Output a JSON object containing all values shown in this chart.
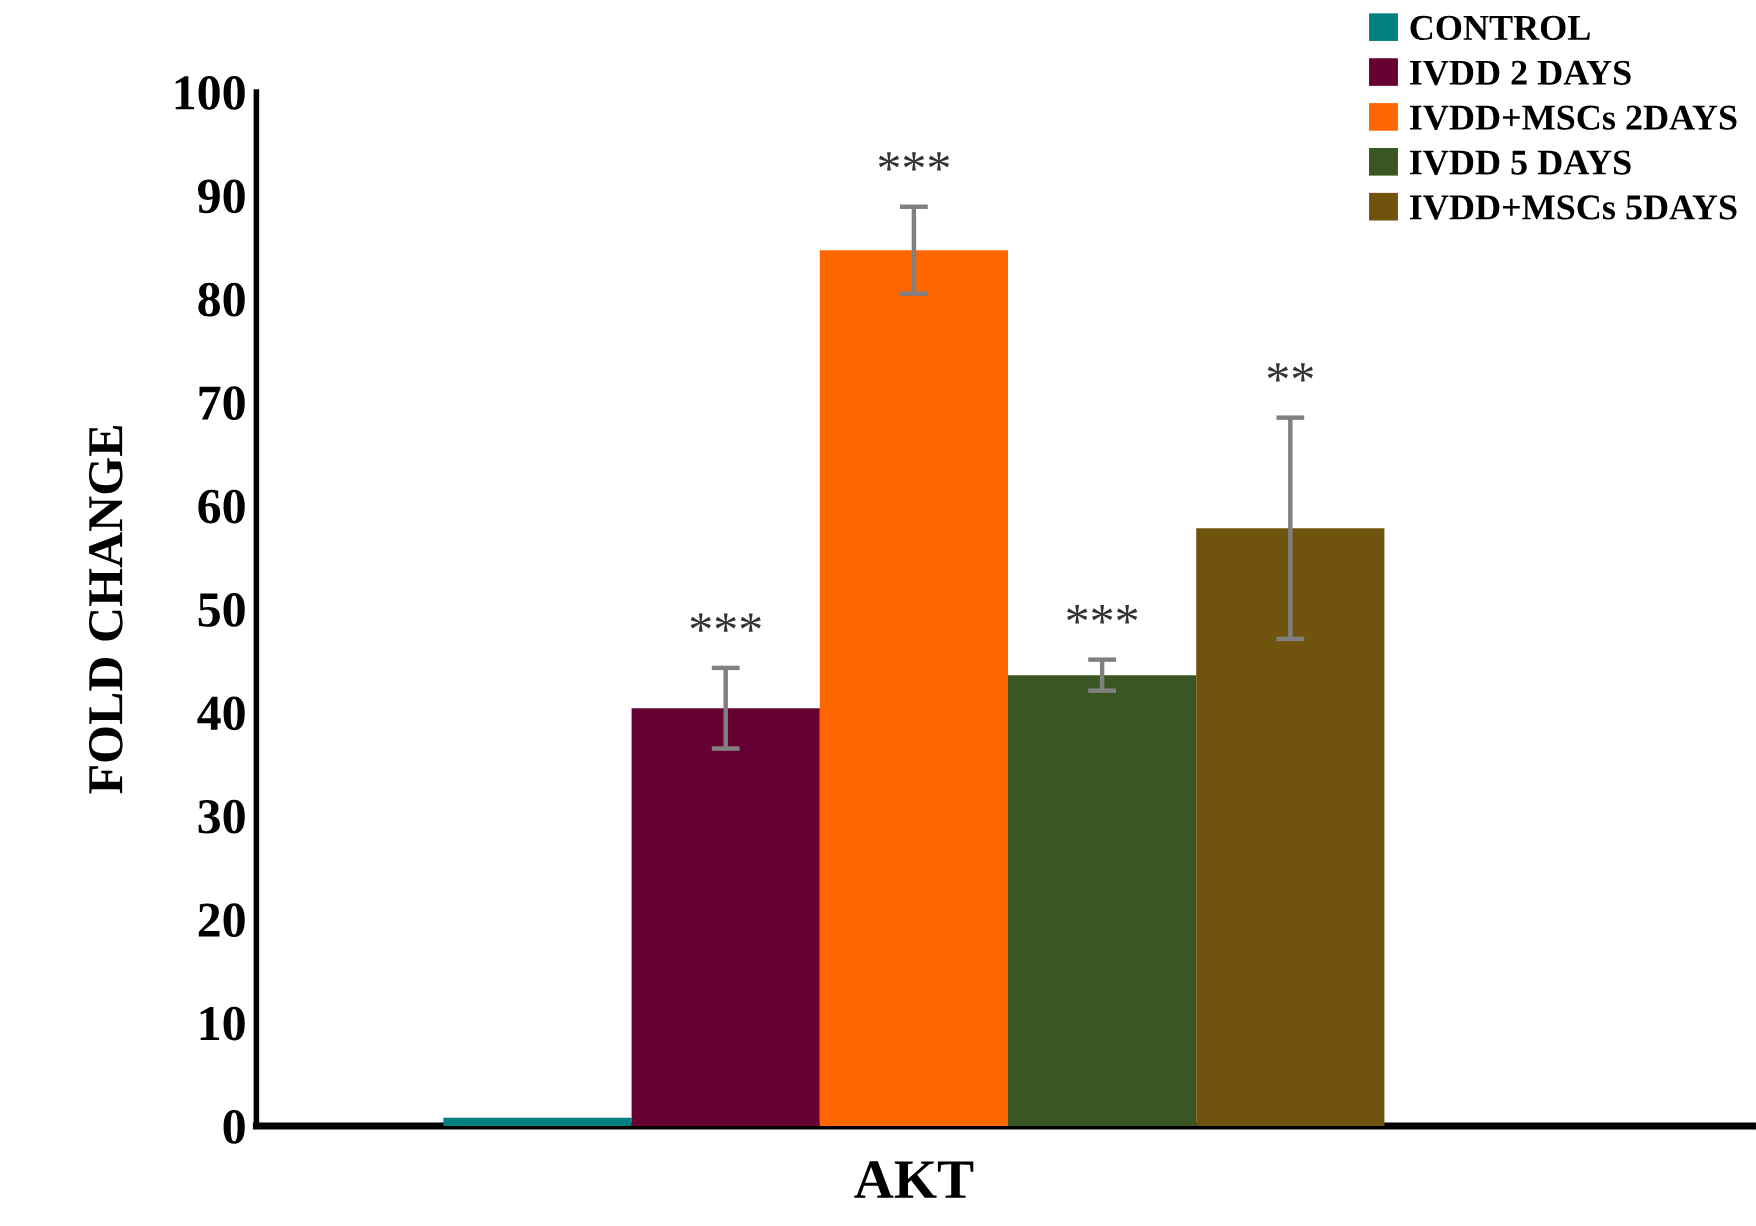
{
  "chart_data": {
    "type": "bar",
    "categories": [
      "AKT"
    ],
    "ylabel": "FOLD CHANGE",
    "ylim": [
      0,
      100
    ],
    "yticks": [
      0,
      10,
      20,
      30,
      40,
      50,
      60,
      70,
      80,
      90,
      100
    ],
    "grid": false,
    "legend": "top right",
    "series": [
      {
        "name": "CONTROL",
        "color": "#008080",
        "values": [
          0.8
        ],
        "errors": [
          null
        ],
        "value_labels": [
          null
        ]
      },
      {
        "name": "IVDD 2 DAYS",
        "color": "#660033",
        "values": [
          40.4
        ],
        "errors": [
          3.9
        ],
        "value_labels": [
          "***"
        ]
      },
      {
        "name": "IVDD+MSCs 2DAYS",
        "color": "#ff6600",
        "values": [
          84.7
        ],
        "errors": [
          4.2
        ],
        "value_labels": [
          "***"
        ]
      },
      {
        "name": "IVDD 5 DAYS",
        "color": "#3a5723",
        "values": [
          43.6
        ],
        "errors": [
          1.5
        ],
        "value_labels": [
          "***"
        ]
      },
      {
        "name": "IVDD+MSCs 5DAYS",
        "color": "#70530c",
        "values": [
          57.8
        ],
        "errors": [
          10.7
        ],
        "value_labels": [
          "**"
        ]
      }
    ]
  }
}
